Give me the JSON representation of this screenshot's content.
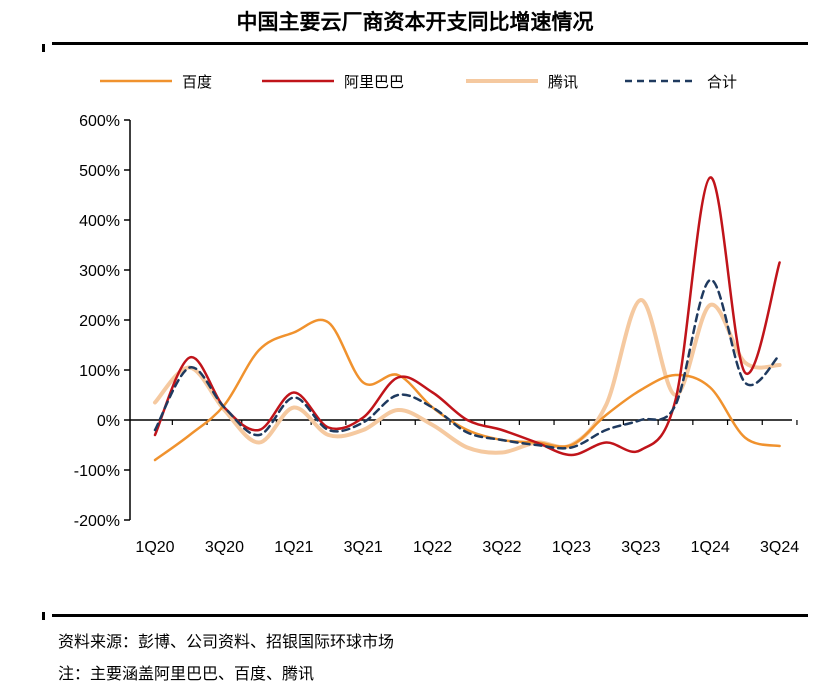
{
  "title": "中国主要云厂商资本开支同比增速情况",
  "footer": {
    "source": "资料来源：彭博、公司资料、招银国际环球市场",
    "note": "注：主要涵盖阿里巴巴、百度、腾讯"
  },
  "chart_data": {
    "type": "line",
    "title": "中国主要云厂商资本开支同比增速情况",
    "xlabel": "",
    "ylabel": "",
    "ylim": [
      -200,
      600
    ],
    "yticks": [
      -200,
      -100,
      0,
      100,
      200,
      300,
      400,
      500,
      600
    ],
    "ytick_labels": [
      "-200%",
      "-100%",
      "0%",
      "100%",
      "200%",
      "300%",
      "400%",
      "500%",
      "600%"
    ],
    "categories": [
      "1Q20",
      "2Q20",
      "3Q20",
      "4Q20",
      "1Q21",
      "2Q21",
      "3Q21",
      "4Q21",
      "1Q22",
      "2Q22",
      "3Q22",
      "4Q22",
      "1Q23",
      "2Q23",
      "3Q23",
      "4Q23",
      "1Q24",
      "2Q24",
      "3Q24"
    ],
    "xtick_labels": [
      "1Q20",
      "",
      "3Q20",
      "",
      "1Q21",
      "",
      "3Q21",
      "",
      "1Q22",
      "",
      "3Q22",
      "",
      "1Q23",
      "",
      "3Q23",
      "",
      "1Q24",
      "",
      "3Q24"
    ],
    "legend_position": "top",
    "grid": false,
    "series": [
      {
        "name": "百度",
        "color": "#f0922e",
        "dash": false,
        "values": [
          -80,
          -30,
          30,
          140,
          175,
          195,
          75,
          90,
          25,
          -20,
          -40,
          -45,
          -50,
          10,
          60,
          90,
          65,
          -35,
          -52
        ]
      },
      {
        "name": "阿里巴巴",
        "color": "#c0141a",
        "dash": false,
        "values": [
          -30,
          125,
          25,
          -20,
          55,
          -15,
          5,
          85,
          55,
          0,
          -20,
          -45,
          -70,
          -45,
          -60,
          40,
          485,
          95,
          315
        ]
      },
      {
        "name": "腾讯",
        "color": "#f5c9a0",
        "dash": false,
        "values": [
          35,
          105,
          20,
          -45,
          25,
          -30,
          -20,
          20,
          -10,
          -55,
          -65,
          -45,
          -50,
          30,
          240,
          50,
          230,
          115,
          110
        ]
      },
      {
        "name": "合计",
        "color": "#1f3a5f",
        "dash": true,
        "values": [
          -20,
          105,
          25,
          -30,
          45,
          -20,
          -5,
          50,
          25,
          -25,
          -40,
          -50,
          -55,
          -20,
          0,
          30,
          280,
          75,
          130
        ]
      }
    ]
  }
}
